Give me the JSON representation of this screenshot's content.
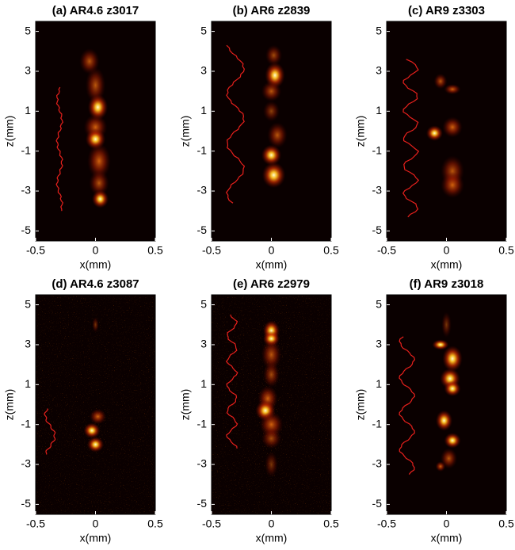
{
  "chart_data": [
    {
      "type": "heatmap",
      "title": "(a) AR4.6 z3017",
      "xlabel": "x(mm)",
      "ylabel": "z(mm)",
      "xlim": [
        -0.5,
        0.5
      ],
      "ylim": [
        -5.5,
        5.5
      ],
      "xticks": [
        -0.5,
        0,
        0.5
      ],
      "yticks": [
        5,
        3,
        1,
        -1,
        -3,
        -5
      ]
    },
    {
      "type": "heatmap",
      "title": "(b) AR6 z2839",
      "xlabel": "x(mm)",
      "ylabel": "z(mm)",
      "xlim": [
        -0.5,
        0.5
      ],
      "ylim": [
        -5.5,
        5.5
      ],
      "xticks": [
        -0.5,
        0,
        0.5
      ],
      "yticks": [
        5,
        3,
        1,
        -1,
        -3,
        -5
      ]
    },
    {
      "type": "heatmap",
      "title": "(c) AR9 z3303",
      "xlabel": "x(mm)",
      "ylabel": "z(mm)",
      "xlim": [
        -0.5,
        0.5
      ],
      "ylim": [
        -5.5,
        5.5
      ],
      "xticks": [
        -0.5,
        0,
        0.5
      ],
      "yticks": [
        5,
        3,
        1,
        -1,
        -3,
        -5
      ]
    },
    {
      "type": "heatmap",
      "title": "(d) AR4.6 z3087",
      "xlabel": "x(mm)",
      "ylabel": "z(mm)",
      "xlim": [
        -0.5,
        0.5
      ],
      "ylim": [
        -5.5,
        5.5
      ],
      "xticks": [
        -0.5,
        0,
        0.5
      ],
      "yticks": [
        5,
        3,
        1,
        -1,
        -3,
        -5
      ]
    },
    {
      "type": "heatmap",
      "title": "(e) AR6 z2979",
      "xlabel": "x(mm)",
      "ylabel": "z(mm)",
      "xlim": [
        -0.5,
        0.5
      ],
      "ylim": [
        -5.5,
        5.5
      ],
      "xticks": [
        -0.5,
        0,
        0.5
      ],
      "yticks": [
        5,
        3,
        1,
        -1,
        -3,
        -5
      ]
    },
    {
      "type": "heatmap",
      "title": "(f) AR9 z3018",
      "xlabel": "x(mm)",
      "ylabel": "z(mm)",
      "xlim": [
        -0.5,
        0.5
      ],
      "ylim": [
        -5.5,
        5.5
      ],
      "xticks": [
        -0.5,
        0,
        0.5
      ],
      "yticks": [
        5,
        3,
        1,
        -1,
        -3,
        -5
      ]
    }
  ]
}
